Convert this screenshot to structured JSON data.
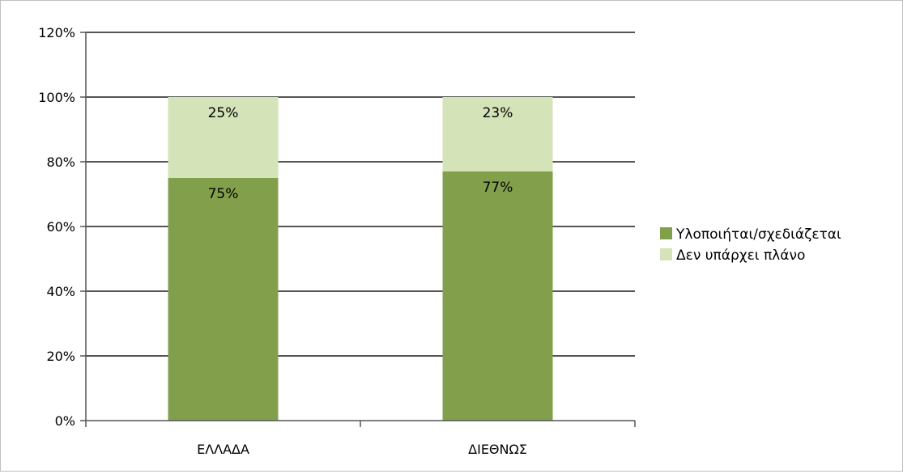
{
  "chart_data": {
    "type": "bar",
    "stacked": true,
    "categories": [
      "ΕΛΛΑΔΑ",
      "ΔΙΕΘΝΩΣ"
    ],
    "series": [
      {
        "name": "Υλοποιήται/σχεδιάζεται",
        "values": [
          75,
          77
        ],
        "labels": [
          "75%",
          "77%"
        ],
        "color": "#82a04c"
      },
      {
        "name": "Δεν υπάρχει πλάνο",
        "values": [
          25,
          23
        ],
        "labels": [
          "25%",
          "23%"
        ],
        "color": "#d4e3b8"
      }
    ],
    "ylim": [
      0,
      120
    ],
    "y_ticks": [
      0,
      20,
      40,
      60,
      80,
      100,
      120
    ],
    "y_tick_labels": [
      "0%",
      "20%",
      "40%",
      "60%",
      "80%",
      "100%",
      "120%"
    ],
    "grid": true,
    "legend_position": "right",
    "title": "",
    "xlabel": "",
    "ylabel": ""
  }
}
